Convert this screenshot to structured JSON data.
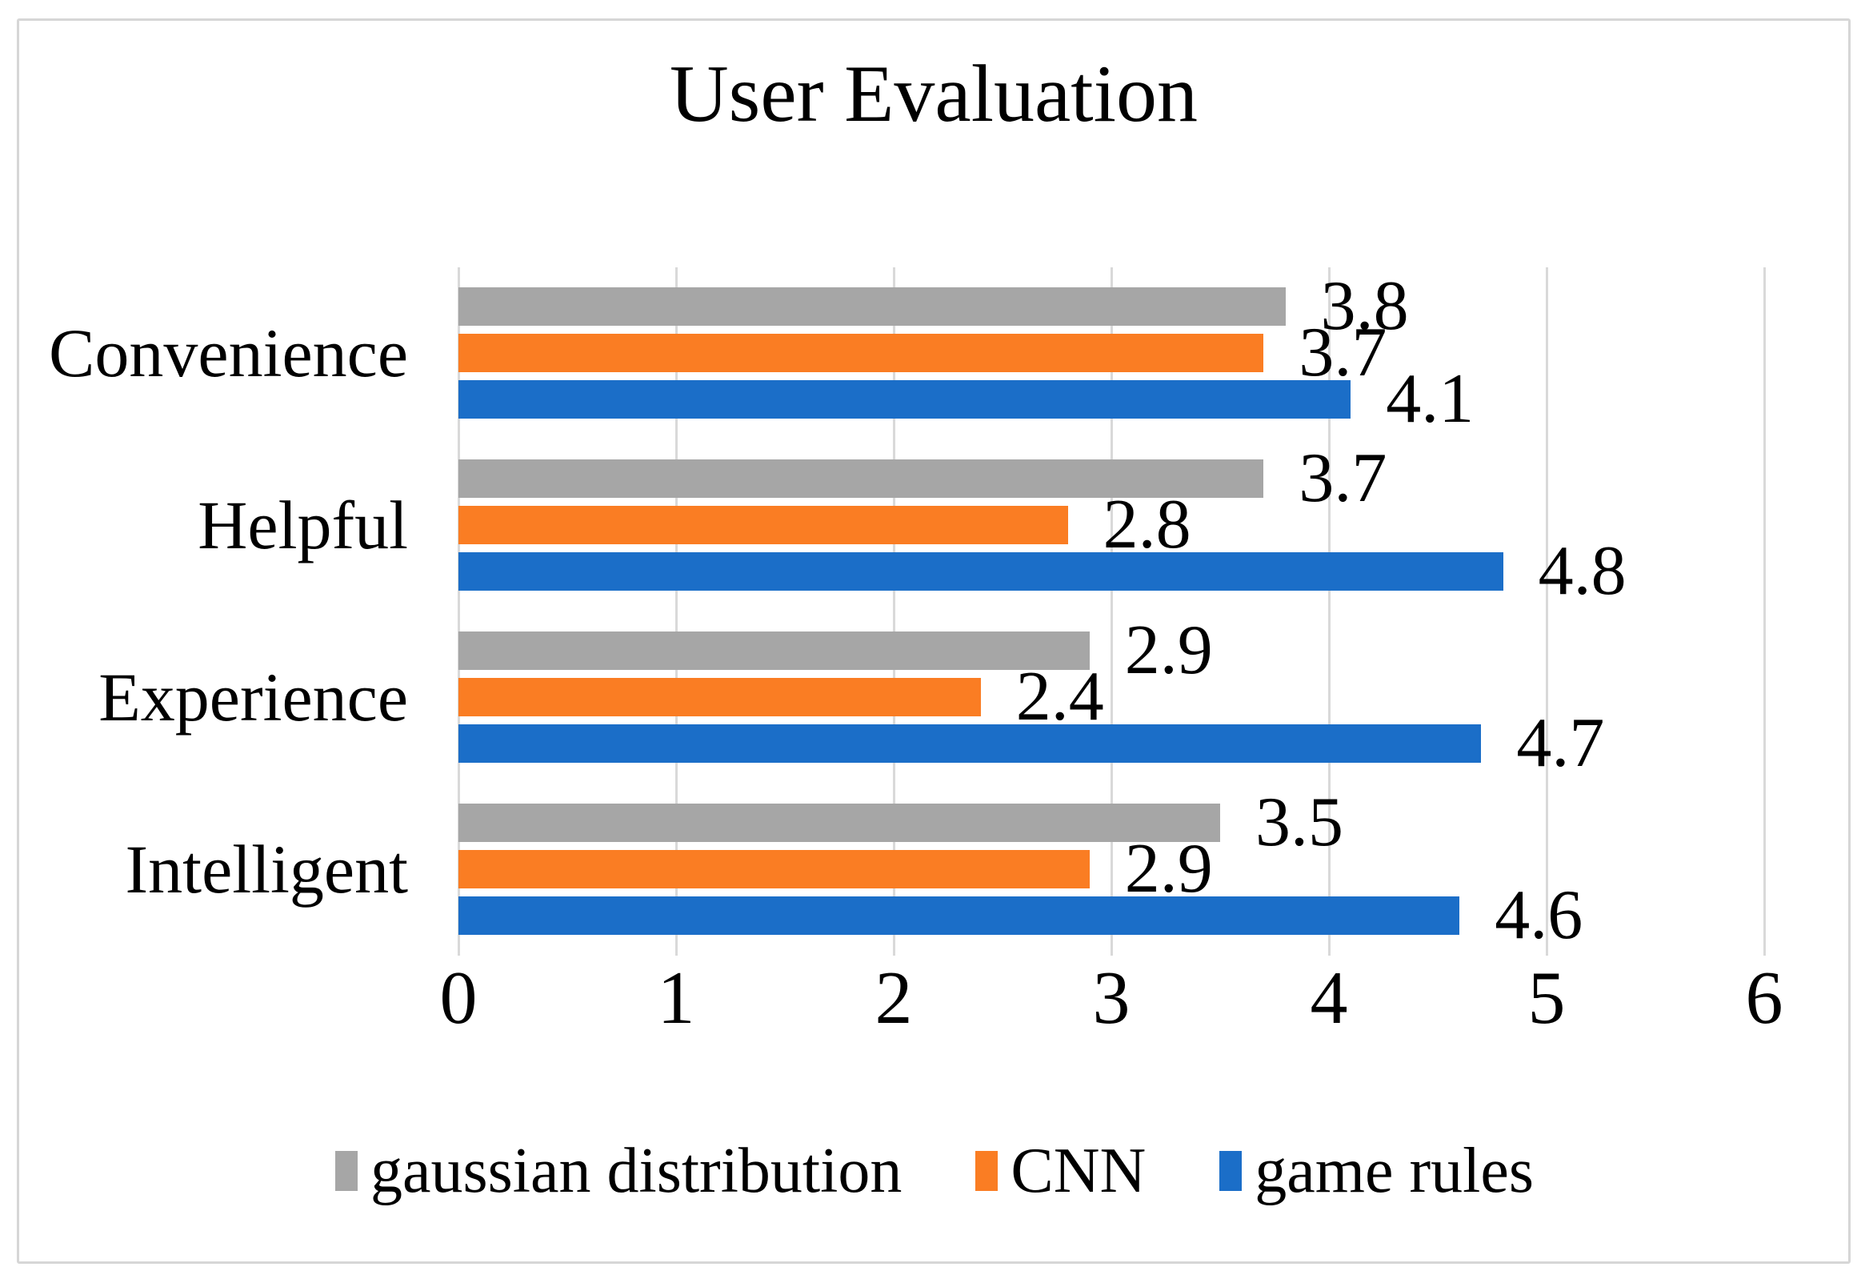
{
  "figure": {
    "border_color": "#d6d6d6",
    "background": "#ffffff"
  },
  "chart_data": {
    "type": "bar",
    "orientation": "horizontal",
    "title": "User Evaluation",
    "categories": [
      "Convenience",
      "Helpful",
      "Experience",
      "Intelligent"
    ],
    "series": [
      {
        "name": "gaussian distribution",
        "color": "#a6a6a6",
        "values": [
          3.8,
          3.7,
          2.9,
          3.5
        ]
      },
      {
        "name": "CNN",
        "color": "#fa7d23",
        "values": [
          3.7,
          2.8,
          2.4,
          2.9
        ]
      },
      {
        "name": "game rules",
        "color": "#1b6ec8",
        "values": [
          4.1,
          4.8,
          4.7,
          4.6
        ]
      }
    ],
    "xlim": [
      0,
      6
    ],
    "x_ticks": [
      "0",
      "1",
      "2",
      "3",
      "4",
      "5",
      "6"
    ],
    "grid": true,
    "gridline_color": "#d9d9d9",
    "legend_position": "bottom",
    "data_labels": true,
    "label_color": "#000000"
  }
}
